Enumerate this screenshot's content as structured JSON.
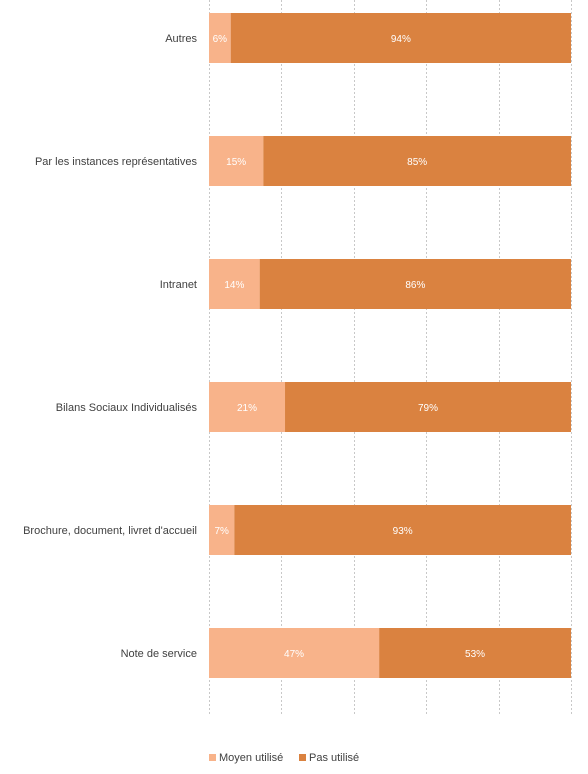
{
  "chart_data": {
    "type": "bar",
    "orientation": "horizontal",
    "stacked": "100%",
    "categories": [
      "Autres",
      "Par les instances représentatives",
      "Intranet",
      "Bilans Sociaux Individualisés",
      "Brochure, document, livret d'accueil",
      "Note de service"
    ],
    "series": [
      {
        "name": "Moyen utilisé",
        "color": "#F8B38A",
        "values": [
          6,
          15,
          14,
          21,
          7,
          47
        ]
      },
      {
        "name": "Pas utilisé",
        "color": "#DA8240",
        "values": [
          94,
          85,
          86,
          79,
          93,
          53
        ]
      }
    ],
    "value_suffix": "%",
    "xlim": [
      0,
      100
    ],
    "grid": "vertical-dashed",
    "legend": "bottom"
  }
}
